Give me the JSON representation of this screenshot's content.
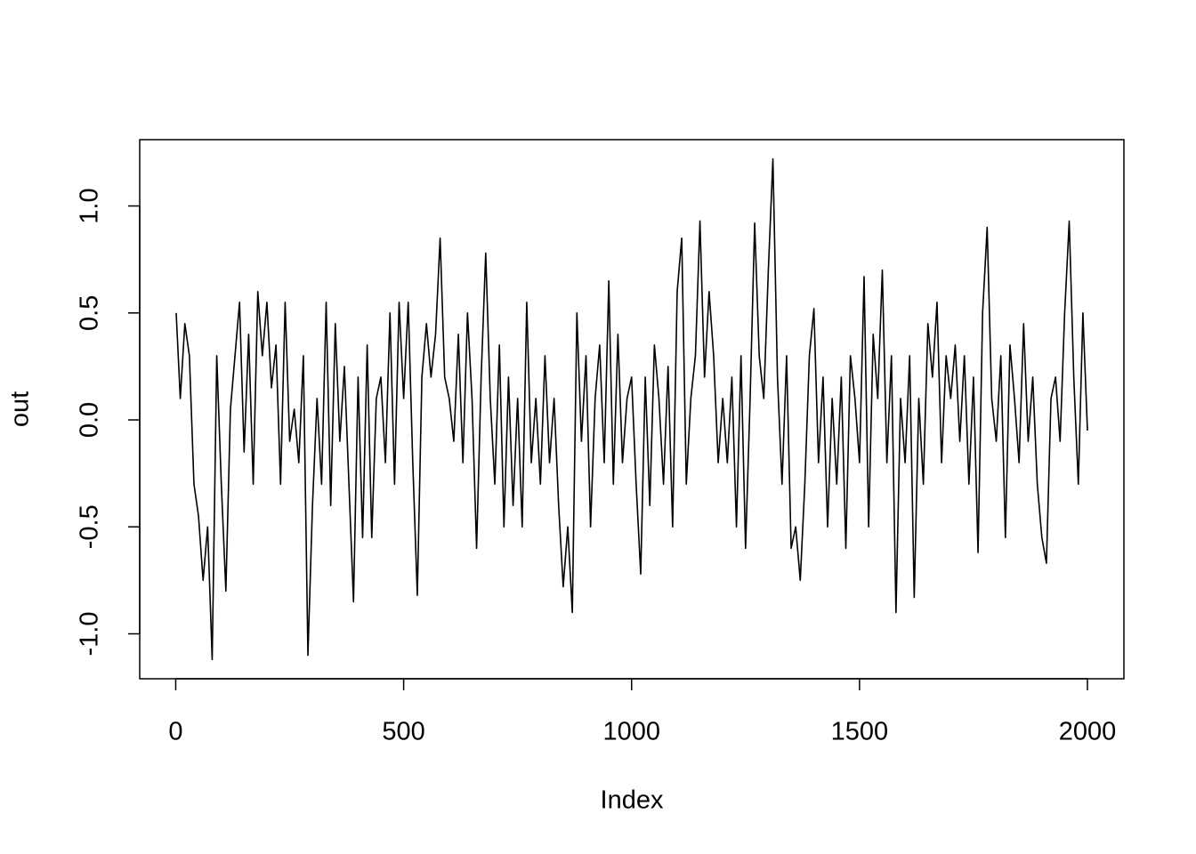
{
  "chart_data": {
    "type": "line",
    "xlabel": "Index",
    "ylabel": "out",
    "color": "#000000",
    "xlim": [
      -79,
      2080
    ],
    "ylim": [
      -1.21,
      1.31
    ],
    "xticks": [
      0,
      500,
      1000,
      1500,
      2000
    ],
    "yticks": [
      {
        "value": -1.0,
        "label": "-1.0"
      },
      {
        "value": -0.5,
        "label": "-0.5"
      },
      {
        "value": 0.0,
        "label": "0.0"
      },
      {
        "value": 0.5,
        "label": "0.5"
      },
      {
        "value": 1.0,
        "label": "1.0"
      }
    ],
    "x": [
      1,
      10,
      20,
      30,
      40,
      50,
      60,
      70,
      80,
      90,
      100,
      110,
      120,
      130,
      140,
      150,
      160,
      170,
      180,
      190,
      200,
      210,
      220,
      230,
      240,
      250,
      260,
      270,
      280,
      290,
      300,
      310,
      320,
      330,
      340,
      350,
      360,
      370,
      380,
      390,
      400,
      410,
      420,
      430,
      440,
      450,
      460,
      470,
      480,
      490,
      500,
      510,
      520,
      530,
      540,
      550,
      560,
      570,
      580,
      590,
      600,
      610,
      620,
      630,
      640,
      650,
      660,
      670,
      680,
      690,
      700,
      710,
      720,
      730,
      740,
      750,
      760,
      770,
      780,
      790,
      800,
      810,
      820,
      830,
      840,
      850,
      860,
      870,
      880,
      890,
      900,
      910,
      920,
      930,
      940,
      950,
      960,
      970,
      980,
      990,
      1000,
      1010,
      1020,
      1030,
      1040,
      1050,
      1060,
      1070,
      1080,
      1090,
      1100,
      1110,
      1120,
      1130,
      1140,
      1150,
      1160,
      1170,
      1180,
      1190,
      1200,
      1210,
      1220,
      1230,
      1240,
      1250,
      1260,
      1270,
      1280,
      1290,
      1300,
      1310,
      1320,
      1330,
      1340,
      1350,
      1360,
      1370,
      1380,
      1390,
      1400,
      1410,
      1420,
      1430,
      1440,
      1450,
      1460,
      1470,
      1480,
      1490,
      1500,
      1510,
      1520,
      1530,
      1540,
      1550,
      1560,
      1570,
      1580,
      1590,
      1600,
      1610,
      1620,
      1630,
      1640,
      1650,
      1660,
      1670,
      1680,
      1690,
      1700,
      1710,
      1720,
      1730,
      1740,
      1750,
      1760,
      1770,
      1780,
      1790,
      1800,
      1810,
      1820,
      1830,
      1840,
      1850,
      1860,
      1870,
      1880,
      1890,
      1900,
      1910,
      1920,
      1930,
      1940,
      1950,
      1960,
      1970,
      1980,
      1990,
      2000
    ],
    "values": [
      0.5,
      0.1,
      0.45,
      0.3,
      -0.3,
      -0.45,
      -0.75,
      -0.5,
      -1.12,
      0.3,
      -0.3,
      -0.8,
      0.05,
      0.3,
      0.55,
      -0.15,
      0.4,
      -0.3,
      0.6,
      0.3,
      0.55,
      0.15,
      0.35,
      -0.3,
      0.55,
      -0.1,
      0.05,
      -0.2,
      0.3,
      -1.1,
      -0.4,
      0.1,
      -0.3,
      0.55,
      -0.4,
      0.45,
      -0.1,
      0.25,
      -0.3,
      -0.85,
      0.2,
      -0.55,
      0.35,
      -0.55,
      0.1,
      0.2,
      -0.2,
      0.5,
      -0.3,
      0.55,
      0.1,
      0.55,
      -0.2,
      -0.82,
      0.2,
      0.45,
      0.2,
      0.4,
      0.85,
      0.2,
      0.1,
      -0.1,
      0.4,
      -0.2,
      0.5,
      0.1,
      -0.6,
      0.2,
      0.78,
      0.1,
      -0.3,
      0.35,
      -0.5,
      0.2,
      -0.4,
      0.1,
      -0.5,
      0.55,
      -0.2,
      0.1,
      -0.3,
      0.3,
      -0.2,
      0.1,
      -0.4,
      -0.78,
      -0.5,
      -0.9,
      0.5,
      -0.1,
      0.3,
      -0.5,
      0.1,
      0.35,
      -0.2,
      0.65,
      -0.3,
      0.4,
      -0.2,
      0.1,
      0.2,
      -0.3,
      -0.72,
      0.2,
      -0.4,
      0.35,
      0.1,
      -0.3,
      0.25,
      -0.5,
      0.6,
      0.85,
      -0.3,
      0.1,
      0.3,
      0.93,
      0.2,
      0.6,
      0.3,
      -0.2,
      0.1,
      -0.2,
      0.2,
      -0.5,
      0.3,
      -0.6,
      0.1,
      0.92,
      0.3,
      0.1,
      0.7,
      1.22,
      0.2,
      -0.3,
      0.3,
      -0.6,
      -0.5,
      -0.75,
      -0.3,
      0.3,
      0.52,
      -0.2,
      0.2,
      -0.5,
      0.1,
      -0.3,
      0.2,
      -0.6,
      0.3,
      0.1,
      -0.2,
      0.67,
      -0.5,
      0.4,
      0.1,
      0.7,
      -0.2,
      0.3,
      -0.9,
      0.1,
      -0.2,
      0.3,
      -0.83,
      0.1,
      -0.3,
      0.45,
      0.2,
      0.55,
      -0.2,
      0.3,
      0.1,
      0.35,
      -0.1,
      0.3,
      -0.3,
      0.2,
      -0.62,
      0.5,
      0.9,
      0.1,
      -0.1,
      0.3,
      -0.55,
      0.35,
      0.1,
      -0.2,
      0.45,
      -0.1,
      0.2,
      -0.3,
      -0.55,
      -0.67,
      0.1,
      0.2,
      -0.1,
      0.5,
      0.93,
      0.2,
      -0.3,
      0.5,
      -0.05
    ]
  }
}
